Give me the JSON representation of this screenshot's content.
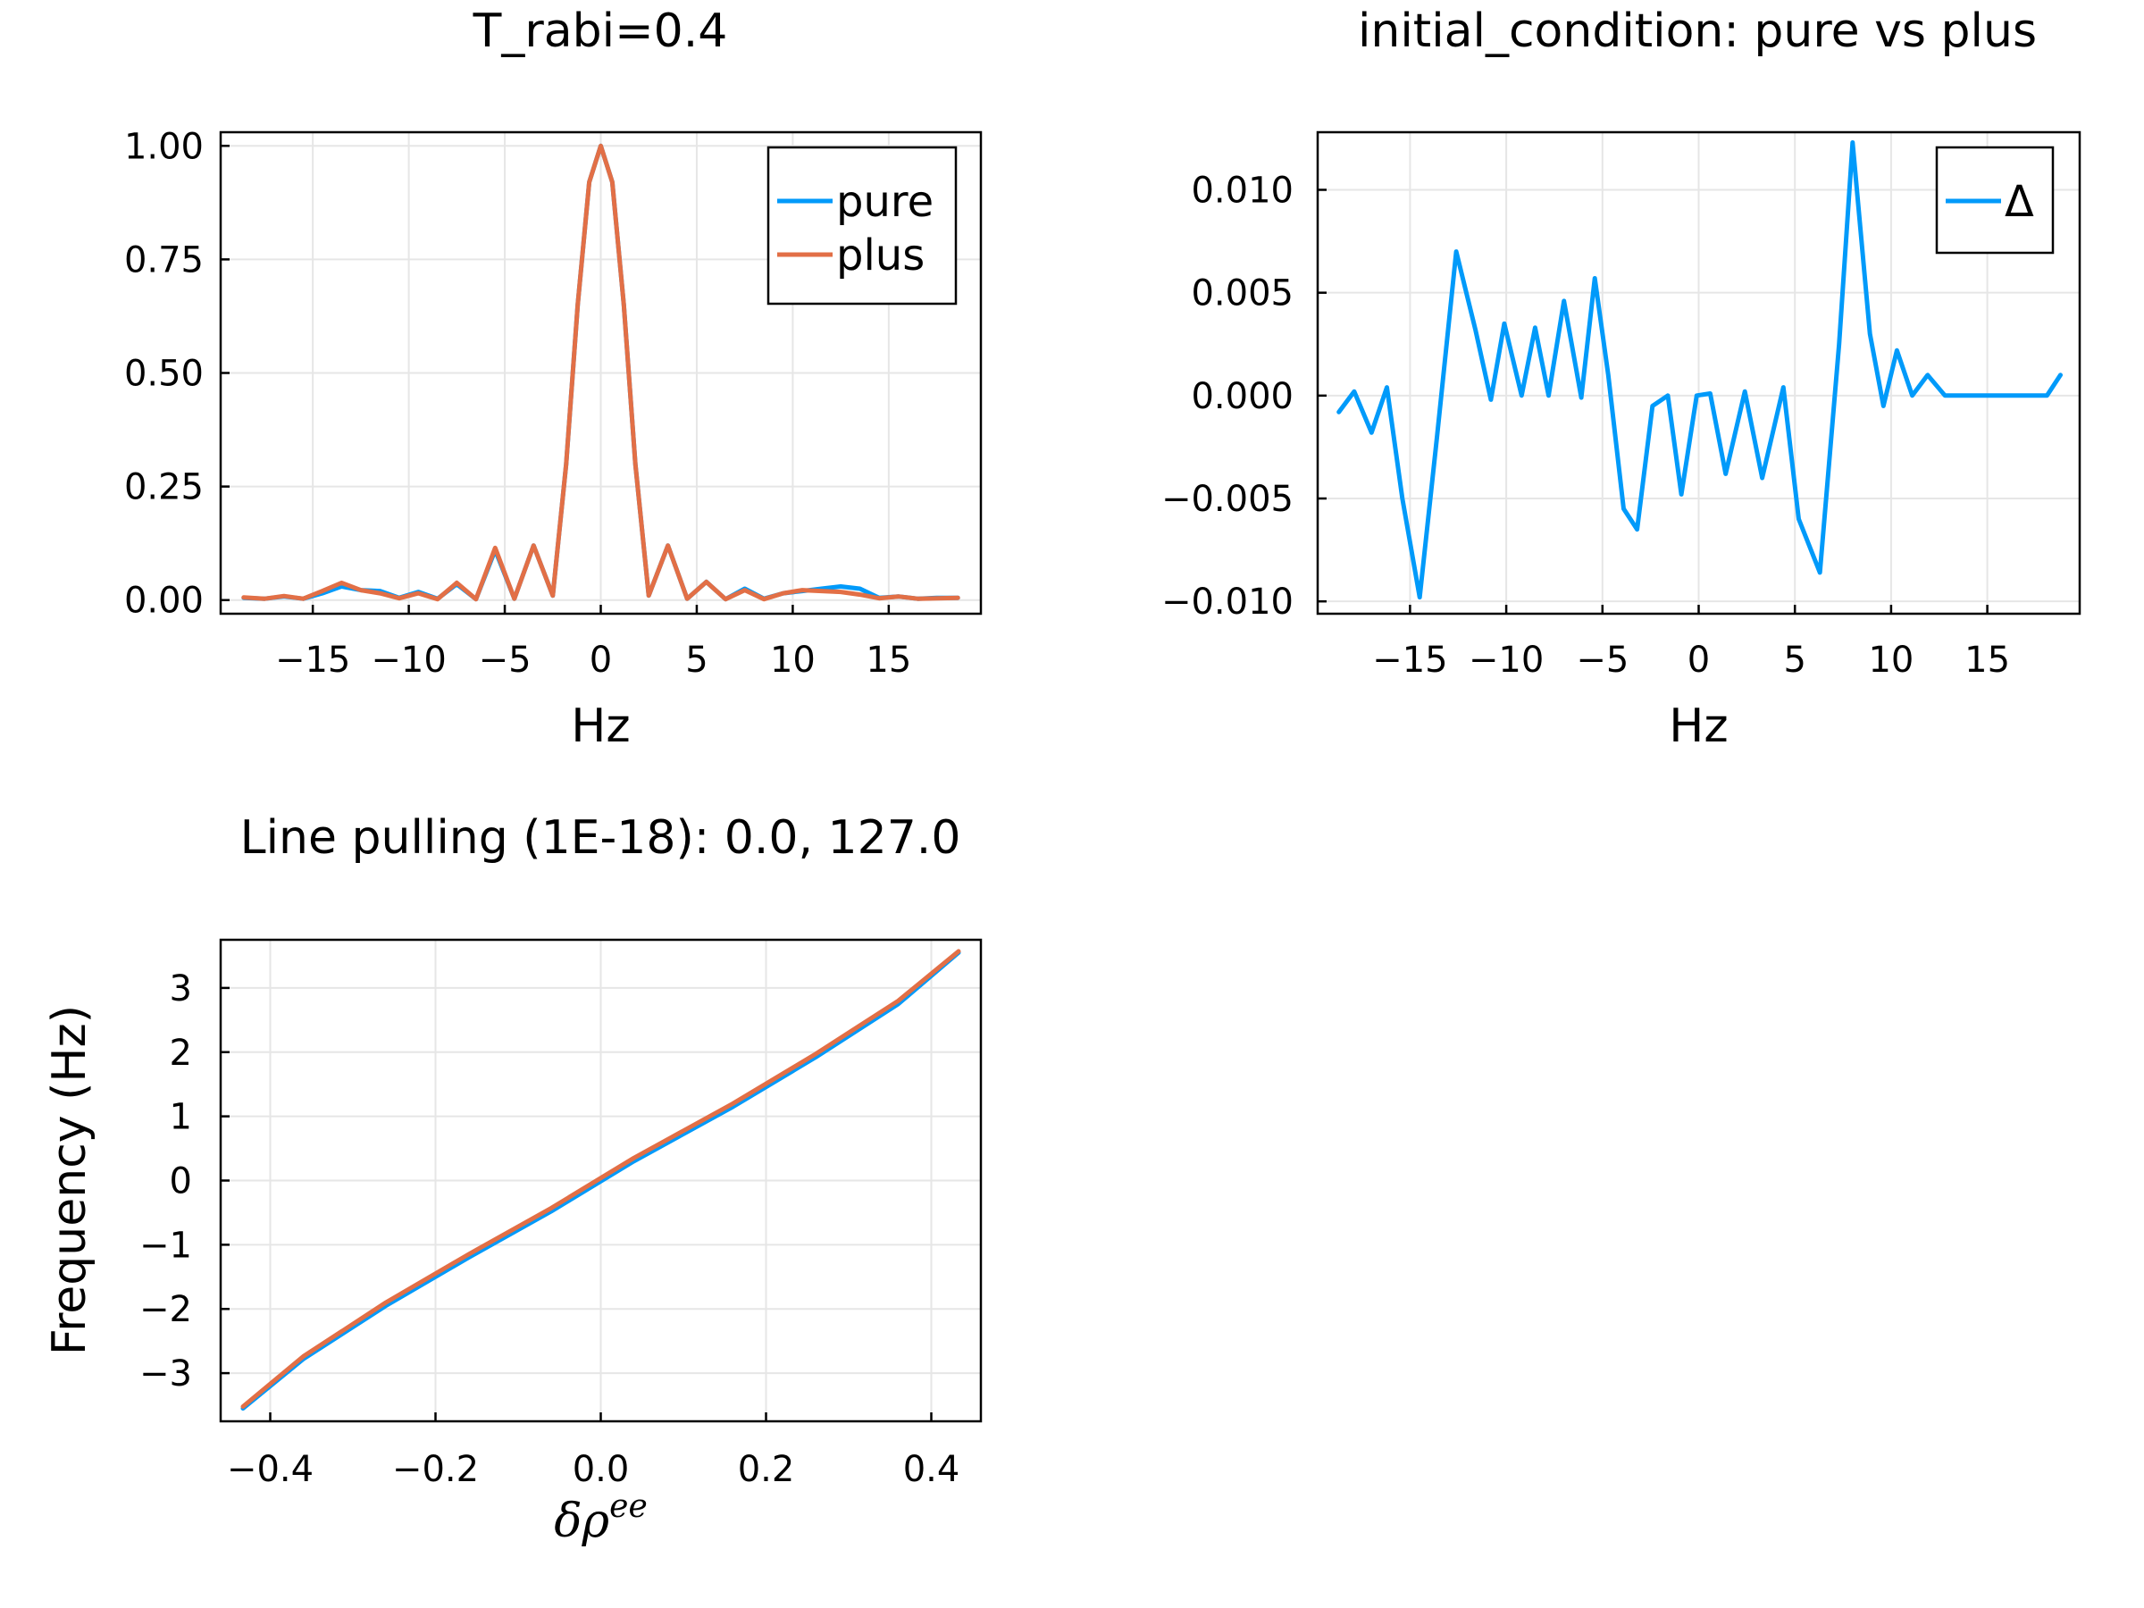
{
  "chart_data": [
    {
      "type": "line",
      "title": "T_rabi=0.4",
      "xlabel": "Hz",
      "ylabel": "",
      "xlim": [
        -19.8,
        19.8
      ],
      "ylim": [
        -0.03,
        1.03
      ],
      "xticks": [
        -15,
        -10,
        -5,
        0,
        5,
        10,
        15
      ],
      "xtick_labels": [
        "−15",
        "−10",
        "−5",
        "0",
        "5",
        "10",
        "15"
      ],
      "yticks": [
        0,
        0.25,
        0.5,
        0.75,
        1.0
      ],
      "ytick_labels": [
        "0.00",
        "0.25",
        "0.50",
        "0.75",
        "1.00"
      ],
      "grid": true,
      "legend": "top-right",
      "series": [
        {
          "name": "pure",
          "color": "#009AFA",
          "x": [
            -18.6,
            -17.5,
            -16.5,
            -15.5,
            -14.5,
            -13.5,
            -12.5,
            -11.5,
            -10.5,
            -9.5,
            -8.5,
            -7.5,
            -6.5,
            -5.5,
            -4.5,
            -3.5,
            -2.5,
            -1.8,
            -1.2,
            -0.6,
            0,
            0.6,
            1.2,
            1.8,
            2.5,
            3.5,
            4.5,
            5.5,
            6.5,
            7.5,
            8.5,
            9.5,
            10.5,
            11.5,
            12.5,
            13.5,
            14.5,
            15.5,
            16.5,
            17.5,
            18.6
          ],
          "y": [
            0.005,
            0.003,
            0.008,
            0.003,
            0.015,
            0.03,
            0.022,
            0.02,
            0.005,
            0.018,
            0.003,
            0.035,
            0.002,
            0.11,
            0.003,
            0.12,
            0.01,
            0.3,
            0.65,
            0.92,
            1.0,
            0.92,
            0.65,
            0.3,
            0.01,
            0.12,
            0.003,
            0.04,
            0.002,
            0.025,
            0.003,
            0.015,
            0.02,
            0.025,
            0.03,
            0.025,
            0.005,
            0.008,
            0.003,
            0.005,
            0.005
          ]
        },
        {
          "name": "plus",
          "color": "#E26F46",
          "x": [
            -18.6,
            -17.5,
            -16.5,
            -15.5,
            -14.5,
            -13.5,
            -12.5,
            -11.5,
            -10.5,
            -9.5,
            -8.5,
            -7.5,
            -6.5,
            -5.5,
            -4.5,
            -3.5,
            -2.5,
            -1.8,
            -1.2,
            -0.6,
            0,
            0.6,
            1.2,
            1.8,
            2.5,
            3.5,
            4.5,
            5.5,
            6.5,
            7.5,
            8.5,
            9.5,
            10.5,
            11.5,
            12.5,
            13.5,
            14.5,
            15.5,
            16.5,
            17.5,
            18.6
          ],
          "y": [
            0.006,
            0.003,
            0.009,
            0.003,
            0.02,
            0.038,
            0.022,
            0.015,
            0.004,
            0.015,
            0.002,
            0.038,
            0.002,
            0.115,
            0.003,
            0.12,
            0.01,
            0.3,
            0.65,
            0.92,
            1.0,
            0.92,
            0.65,
            0.3,
            0.01,
            0.12,
            0.003,
            0.04,
            0.002,
            0.022,
            0.002,
            0.015,
            0.022,
            0.02,
            0.018,
            0.012,
            0.004,
            0.008,
            0.003,
            0.004,
            0.005
          ]
        }
      ]
    },
    {
      "type": "line",
      "title": "initial_condition: pure vs plus",
      "xlabel": "Hz",
      "ylabel": "",
      "xlim": [
        -19.8,
        19.8
      ],
      "ylim": [
        -0.0106,
        0.0128
      ],
      "xticks": [
        -15,
        -10,
        -5,
        0,
        5,
        10,
        15
      ],
      "xtick_labels": [
        "−15",
        "−10",
        "−5",
        "0",
        "5",
        "10",
        "15"
      ],
      "yticks": [
        -0.01,
        -0.005,
        0,
        0.005,
        0.01
      ],
      "ytick_labels": [
        "−0.010",
        "−0.005",
        "0.000",
        "0.005",
        "0.010"
      ],
      "grid": true,
      "legend": "top-right",
      "series": [
        {
          "name": "Δ",
          "color": "#009AFA",
          "x": [
            -18.7,
            -17.9,
            -17,
            -16.2,
            -15.4,
            -14.5,
            -13.6,
            -12.6,
            -11.6,
            -10.8,
            -10.1,
            -9.2,
            -8.5,
            -7.8,
            -7,
            -6.1,
            -5.4,
            -4.7,
            -3.9,
            -3.2,
            -2.4,
            -1.6,
            -0.9,
            -0.1,
            0.6,
            1.4,
            2.4,
            3.3,
            4.4,
            5.2,
            6.3,
            7.3,
            8,
            8.9,
            9.6,
            10.3,
            11.1,
            11.9,
            12.8,
            13.6,
            14.5,
            15.5,
            16.4,
            17.3,
            18.1,
            18.8
          ],
          "y": [
            -0.0008,
            0.0002,
            -0.0018,
            0.0004,
            -0.005,
            -0.0098,
            -0.002,
            0.007,
            0.0032,
            -0.0002,
            0.0035,
            0,
            0.0033,
            0,
            0.0046,
            -0.0001,
            0.0057,
            0.001,
            -0.0055,
            -0.0065,
            -0.0005,
            0,
            -0.0048,
            0,
            0.0001,
            -0.0038,
            0.0002,
            -0.004,
            0.0004,
            -0.006,
            -0.0086,
            0.0025,
            0.0123,
            0.003,
            -0.0005,
            0.0022,
            0,
            0.001,
            0,
            0,
            0,
            0,
            0,
            0,
            0,
            0.001
          ]
        }
      ]
    },
    {
      "type": "line",
      "title": "Line pulling (1E-18): 0.0, 127.0",
      "xlabel": "δρ",
      "xlabel_sup": "ee",
      "ylabel": "Frequency (Hz)",
      "xlim": [
        -0.46,
        0.46
      ],
      "ylim": [
        -3.75,
        3.75
      ],
      "xticks": [
        -0.4,
        -0.2,
        0,
        0.2,
        0.4
      ],
      "xtick_labels": [
        "−0.4",
        "−0.2",
        "0.0",
        "0.2",
        "0.4"
      ],
      "yticks": [
        -3,
        -2,
        -1,
        0,
        1,
        2,
        3
      ],
      "ytick_labels": [
        "−3",
        "−2",
        "−1",
        "0",
        "1",
        "2",
        "3"
      ],
      "grid": true,
      "legend": "none",
      "series": [
        {
          "color": "#009AFA",
          "x": [
            -0.433,
            -0.36,
            -0.26,
            -0.16,
            -0.06,
            0.04,
            0.16,
            0.26,
            0.36,
            0.433
          ],
          "y": [
            -3.55,
            -2.78,
            -1.95,
            -1.2,
            -0.48,
            0.3,
            1.15,
            1.92,
            2.75,
            3.55
          ]
        },
        {
          "color": "#E26F46",
          "x": [
            -0.433,
            -0.36,
            -0.26,
            -0.16,
            -0.06,
            0.04,
            0.16,
            0.26,
            0.36,
            0.433
          ],
          "y": [
            -3.52,
            -2.74,
            -1.9,
            -1.15,
            -0.43,
            0.35,
            1.2,
            1.97,
            2.8,
            3.57
          ]
        }
      ]
    }
  ]
}
